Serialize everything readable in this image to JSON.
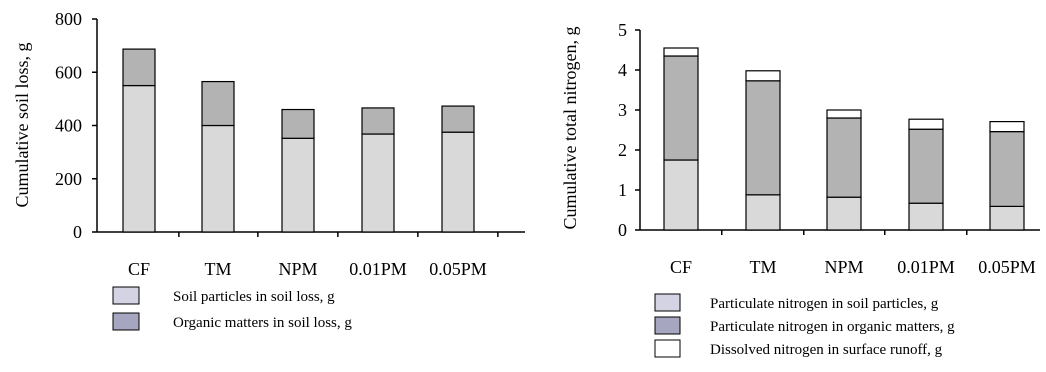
{
  "chart_data": [
    {
      "type": "bar",
      "stacked": true,
      "title": "",
      "xlabel": "",
      "ylabel": "Cumulative soil loss, g",
      "ylim": [
        0,
        800
      ],
      "yticks": [
        "0",
        "200",
        "400",
        "600",
        "800"
      ],
      "categories": [
        "CF",
        "TM",
        "NPM",
        "0.01PM",
        "0.05PM"
      ],
      "series": [
        {
          "name": "Soil particles in soil loss, g",
          "values": [
            550,
            400,
            352,
            368,
            375
          ],
          "color": "#d9d9d9"
        },
        {
          "name": "Organic matters in soil loss, g",
          "values": [
            137,
            165,
            108,
            98,
            98
          ],
          "color": "#b3b3b3"
        }
      ],
      "legend_colors": [
        "#d3d3e3",
        "#a6a6c0"
      ],
      "legend_placement": "bottom",
      "grid": false
    },
    {
      "type": "bar",
      "stacked": true,
      "title": "",
      "xlabel": "",
      "ylabel": "Cumulative total nitrogen, g",
      "ylim": [
        0,
        5
      ],
      "yticks": [
        "0",
        "1",
        "2",
        "3",
        "4",
        "5"
      ],
      "categories": [
        "CF",
        "TM",
        "NPM",
        "0.01PM",
        "0.05PM"
      ],
      "series": [
        {
          "name": "Particulate nitrogen in soil particles, g",
          "values": [
            1.75,
            0.88,
            0.82,
            0.67,
            0.59
          ],
          "color": "#d9d9d9"
        },
        {
          "name": "Particulate nitrogen in organic matters, g",
          "values": [
            2.6,
            2.85,
            1.98,
            1.85,
            1.87
          ],
          "color": "#b3b3b3"
        },
        {
          "name": "Dissolved nitrogen in surface runoff, g",
          "values": [
            0.2,
            0.25,
            0.2,
            0.25,
            0.25
          ],
          "color": "#ffffff"
        }
      ],
      "legend_colors": [
        "#d3d3e3",
        "#a6a6c0",
        "#ffffff"
      ],
      "legend_placement": "bottom",
      "grid": false
    }
  ]
}
